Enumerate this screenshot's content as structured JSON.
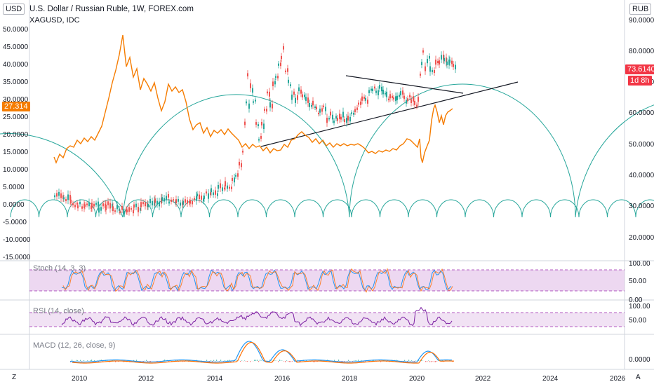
{
  "header": {
    "symbol_title": "U.S. Dollar / Russian Ruble, 1W, FOREX.com",
    "compare_symbol": "XAGUSD, IDC"
  },
  "axis_badges": {
    "left_currency": "USD",
    "right_currency": "RUB"
  },
  "price_tags": {
    "left_value": "27.314",
    "right_price": "73.6140",
    "right_countdown": "1d 8h",
    "left_color": "#f57c00",
    "right_color": "#f23645"
  },
  "left_axis": [
    "50.0000",
    "45.0000",
    "40.0000",
    "35.0000",
    "30.0000",
    "25.0000",
    "20.0000",
    "15.0000",
    "10.0000",
    "5.0000",
    "0.0000",
    "-5.0000",
    "-10.0000",
    "-15.0000"
  ],
  "right_axis": [
    "90.0000",
    "80.0000",
    "70.0000",
    "60.0000",
    "50.0000",
    "40.0000",
    "30.0000",
    "20.0000"
  ],
  "time_axis": [
    "2010",
    "2012",
    "2014",
    "2016",
    "2018",
    "2020",
    "2022",
    "2024",
    "2026"
  ],
  "corners": {
    "left": "Z",
    "right": "A"
  },
  "indicators": {
    "stoch": {
      "label": "Stoch (14, 3, 3)",
      "ticks": [
        "100.00",
        "50.00",
        "0.00"
      ]
    },
    "rsi": {
      "label": "RSI (14, close)",
      "ticks": [
        "100.00",
        "50.00"
      ]
    },
    "macd": {
      "label": "MACD (12, 26, close, 9)",
      "ticks": [
        "0.0000"
      ]
    }
  },
  "colors": {
    "candle_up": "#26a69a",
    "candle_down": "#ef5350",
    "compare_line": "#f57c00",
    "arcs": "#26a69a",
    "stoch_fill": "#e1bee7",
    "rsi_line": "#7b1fa2",
    "macd_line": "#2196f3",
    "signal_line": "#ff6d00"
  }
}
